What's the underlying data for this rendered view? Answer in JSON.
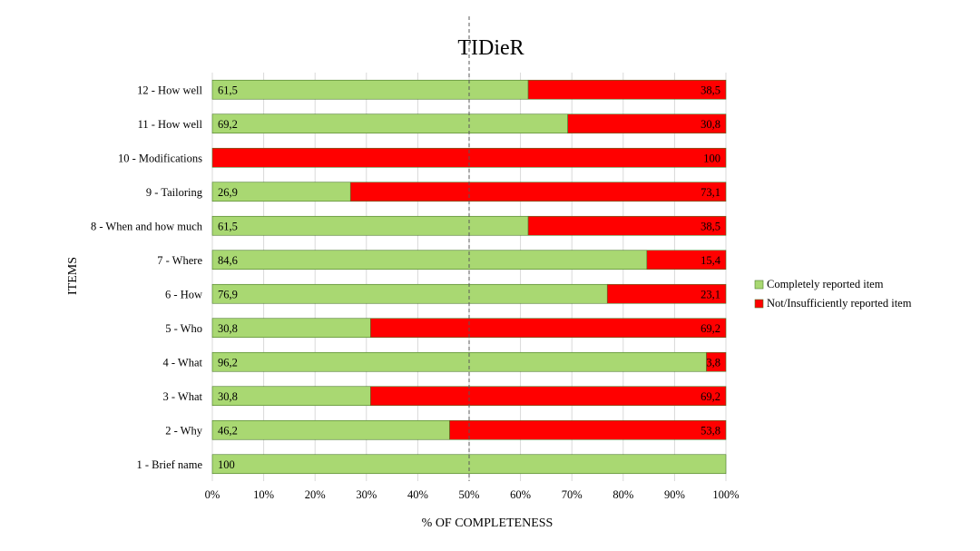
{
  "chart_data": {
    "type": "bar",
    "orientation": "horizontal",
    "stacked": "percent",
    "title": "TIDieR",
    "xlabel": "% OF COMPLETENESS",
    "ylabel": "ITEMS",
    "xlim": [
      0,
      100
    ],
    "xticks": [
      "0%",
      "10%",
      "20%",
      "30%",
      "40%",
      "50%",
      "60%",
      "70%",
      "80%",
      "90%",
      "100%"
    ],
    "reference_line": 50,
    "grid": "vertical",
    "legend_position": "right",
    "categories": [
      "1 - Brief name",
      "2 - Why",
      "3 - What",
      "4 - What",
      "5 - Who",
      "6 - How",
      "7 - Where",
      "8 - When and how much",
      "9 - Tailoring",
      "10 - Modifications",
      "11 - How well",
      "12 - How well"
    ],
    "series": [
      {
        "name": "Completely reported item",
        "color": "#a9d872",
        "values": [
          100,
          46.2,
          30.8,
          96.2,
          30.8,
          76.9,
          84.6,
          61.5,
          26.9,
          0,
          69.2,
          61.5
        ],
        "labels": [
          "100",
          "46,2",
          "30,8",
          "96,2",
          "30,8",
          "76,9",
          "84,6",
          "61,5",
          "26,9",
          "",
          "69,2",
          "61,5"
        ]
      },
      {
        "name": "Not/Insufficiently reported item",
        "color": "#ff0000",
        "values": [
          0,
          53.8,
          69.2,
          3.8,
          69.2,
          23.1,
          15.4,
          38.5,
          73.1,
          100,
          30.8,
          38.5
        ],
        "labels": [
          "",
          "53,8",
          "69,2",
          "3,8",
          "69,2",
          "23,1",
          "15,4",
          "38,5",
          "73,1",
          "100",
          "30,8",
          "38,5"
        ]
      }
    ]
  }
}
